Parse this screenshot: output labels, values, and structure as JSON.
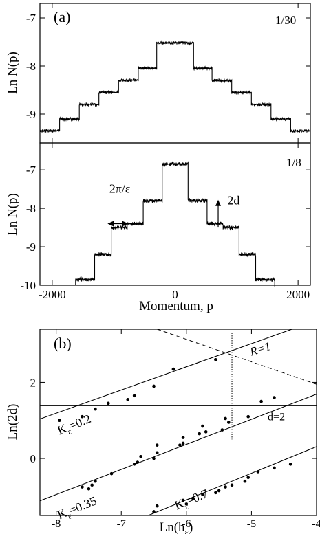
{
  "chart_data": [
    {
      "type": "line",
      "panel": "(a)",
      "label": "1/30",
      "xlabel": "",
      "ylabel": "Ln N(p)",
      "xlim": [
        -2200,
        2200
      ],
      "ylim": [
        -9.6,
        -6.7
      ],
      "xticks": [
        -2000,
        0,
        2000
      ],
      "yticks": [
        -9,
        -8,
        -7
      ],
      "ytick_labels": [
        "-9",
        "-8",
        "-7"
      ],
      "grid": false,
      "series": [
        {
          "x": [
            -2200,
            -1880,
            -1880,
            -1560,
            -1560,
            -1240,
            -1240,
            -920,
            -920,
            -600,
            -600,
            -300,
            -300,
            300,
            300,
            600,
            600,
            920,
            920,
            1240,
            1240,
            1560,
            1560,
            1880,
            1880,
            2200
          ],
          "y": [
            -9.35,
            -9.35,
            -9.1,
            -9.1,
            -8.8,
            -8.8,
            -8.55,
            -8.55,
            -8.3,
            -8.3,
            -8.05,
            -8.05,
            -7.52,
            -7.52,
            -8.05,
            -8.05,
            -8.3,
            -8.3,
            -8.55,
            -8.55,
            -8.8,
            -8.8,
            -9.1,
            -9.1,
            -9.35,
            -9.35
          ]
        }
      ]
    },
    {
      "type": "line",
      "label": "1/8",
      "xlabel": "Momentum, p",
      "ylabel": "Ln N(p)",
      "xlim": [
        -2200,
        2200
      ],
      "ylim": [
        -10,
        -6.3
      ],
      "xticks": [
        -2000,
        0,
        2000
      ],
      "xtick_labels": [
        "-2000",
        "0",
        "2000"
      ],
      "yticks": [
        -10,
        -9,
        -8,
        -7
      ],
      "ytick_labels": [
        "-10",
        "-9",
        "-8",
        "-7"
      ],
      "grid": false,
      "annotations": [
        {
          "text": "2π/ε",
          "x": -900,
          "y": -7.6
        },
        {
          "text": "2d",
          "x": 950,
          "y": -7.9
        }
      ],
      "series": [
        {
          "x": [
            -1620,
            -1620,
            -1310,
            -1310,
            -1040,
            -1040,
            -780,
            -780,
            -520,
            -520,
            -210,
            -210,
            210,
            210,
            520,
            520,
            780,
            780,
            1040,
            1040,
            1310,
            1310,
            1620,
            1620
          ],
          "y": [
            -10,
            -9.85,
            -9.85,
            -9.2,
            -9.2,
            -8.5,
            -8.5,
            -8.4,
            -8.4,
            -7.8,
            -7.8,
            -6.85,
            -6.85,
            -7.8,
            -7.8,
            -8.4,
            -8.4,
            -8.5,
            -8.5,
            -9.2,
            -9.2,
            -9.85,
            -9.85,
            -10
          ]
        }
      ]
    },
    {
      "type": "scatter",
      "panel": "(b)",
      "xlabel": "Ln(h",
      "xlabel_sub": "ε",
      "xlabel_tail": ")",
      "ylabel": "Ln(2d)",
      "xlim": [
        -8.25,
        -4
      ],
      "ylim": [
        -1.5,
        3.4
      ],
      "xticks": [
        -8,
        -7,
        -6,
        -5,
        -4
      ],
      "xtick_labels": [
        "-8",
        "-7",
        "-6",
        "-5",
        "-4"
      ],
      "yticks": [
        0,
        2
      ],
      "ytick_labels": [
        "0",
        "2"
      ],
      "grid": false,
      "text_labels": {
        "hline": "d=2",
        "dashed": "R=1"
      },
      "reference_lines": {
        "hline_y": 1.386,
        "vline_x": -5.3
      },
      "series": [
        {
          "name_main": "K",
          "name_sub": "ε",
          "name_tail": "=0.2",
          "fit": {
            "slope": 0.61,
            "intercept": 6.07
          },
          "x": [
            -7.95,
            -7.6,
            -7.4,
            -7.2,
            -6.9,
            -6.8,
            -6.5,
            -6.2,
            -5.55,
            -4.85,
            -4.65
          ],
          "y": [
            1.0,
            1.1,
            1.3,
            1.45,
            1.55,
            1.65,
            1.9,
            2.35,
            2.6,
            1.5,
            1.6
          ]
        },
        {
          "name_main": "K",
          "name_sub": "ε",
          "name_tail": "=0.35",
          "fit": {
            "slope": 0.66,
            "intercept": 4.33
          },
          "x": [
            -7.6,
            -7.5,
            -7.45,
            -7.4,
            -7.15,
            -6.8,
            -6.75,
            -6.7,
            -6.5,
            -6.45,
            -6.45,
            -6.1,
            -6.05,
            -6.05,
            -5.8,
            -5.75,
            -5.7,
            -5.45,
            -5.4,
            -5.35,
            -5.05
          ],
          "y": [
            -0.75,
            -0.8,
            -0.7,
            -0.6,
            -0.4,
            -0.15,
            -0.1,
            0.05,
            0.0,
            0.15,
            0.35,
            0.35,
            0.4,
            0.55,
            0.65,
            0.85,
            0.7,
            0.75,
            1.05,
            0.95,
            1.1
          ]
        },
        {
          "name_main": "K",
          "name_sub": "ε",
          "name_tail": "=0.7",
          "fit": {
            "slope": 0.7,
            "intercept": 3.11
          },
          "x": [
            -6.5,
            -6.45,
            -6.05,
            -6.0,
            -5.9,
            -5.75,
            -5.55,
            -5.5,
            -5.4,
            -5.3,
            -5.1,
            -5.05,
            -4.9,
            -4.65,
            -4.4
          ],
          "y": [
            -1.4,
            -1.25,
            -1.1,
            -1.2,
            -1.05,
            -0.95,
            -0.9,
            -0.85,
            -0.75,
            -0.7,
            -0.6,
            -0.5,
            -0.35,
            -0.25,
            -0.15
          ]
        }
      ]
    }
  ]
}
